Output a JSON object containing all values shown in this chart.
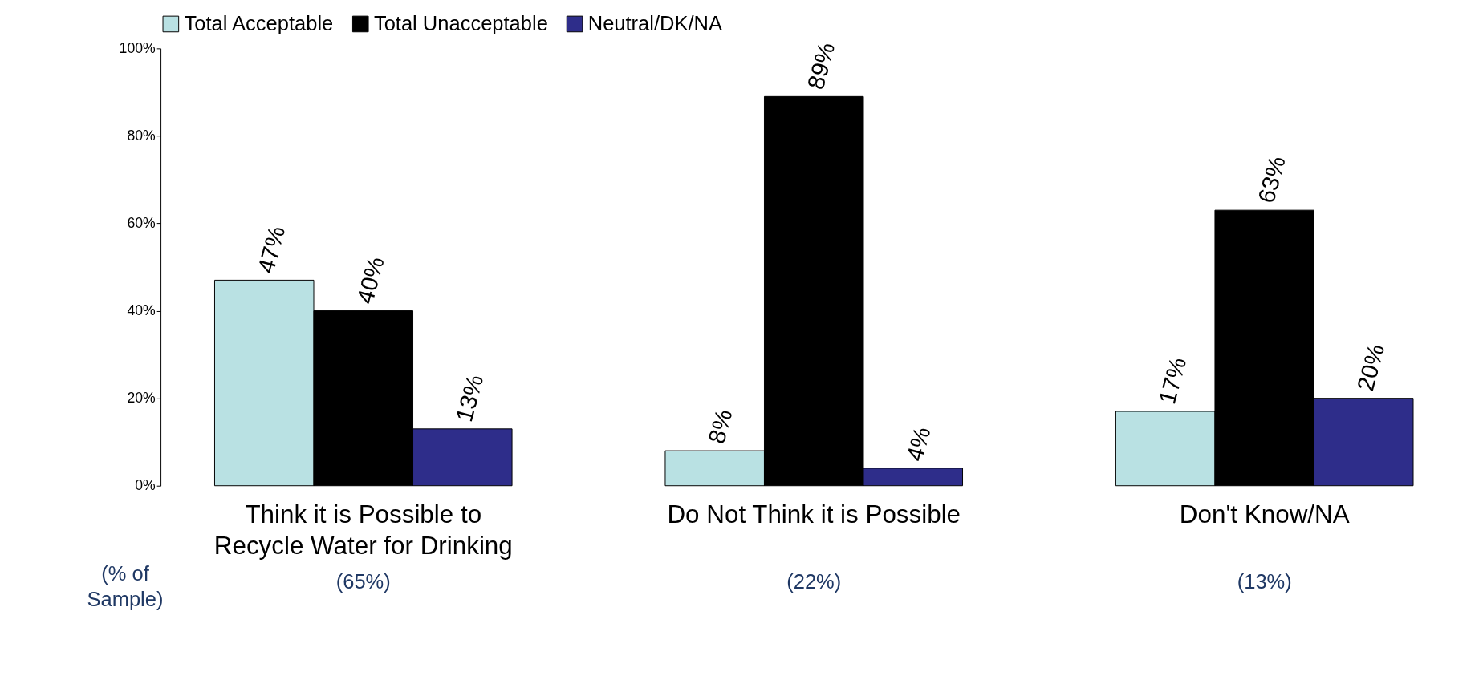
{
  "chart_data": {
    "type": "bar",
    "categories": [
      "Think it is Possible to Recycle Water for Drinking",
      "Do Not Think it is Possible",
      "Don't Know/NA"
    ],
    "series": [
      {
        "name": "Total Acceptable",
        "color": "#b9e1e3",
        "values": [
          47,
          8,
          17
        ],
        "value_labels": [
          "47%",
          "8%",
          "17%"
        ]
      },
      {
        "name": "Total Unacceptable",
        "color": "#000000",
        "values": [
          40,
          89,
          63
        ],
        "value_labels": [
          "40%",
          "89%",
          "63%"
        ]
      },
      {
        "name": "Neutral/DK/NA",
        "color": "#2e2d8a",
        "values": [
          13,
          4,
          20
        ],
        "value_labels": [
          "13%",
          "4%",
          "20%"
        ]
      }
    ],
    "ylim": [
      0,
      100
    ],
    "yticks": [
      {
        "value": 0,
        "label": "0%"
      },
      {
        "value": 20,
        "label": "20%"
      },
      {
        "value": 40,
        "label": "40%"
      },
      {
        "value": 60,
        "label": "60%"
      },
      {
        "value": 80,
        "label": "80%"
      },
      {
        "value": 100,
        "label": "100%"
      }
    ],
    "annotations": [
      "(% of Sample)",
      "(65%)",
      "(22%)",
      "(13%)"
    ],
    "grid": false,
    "legend": "top"
  }
}
